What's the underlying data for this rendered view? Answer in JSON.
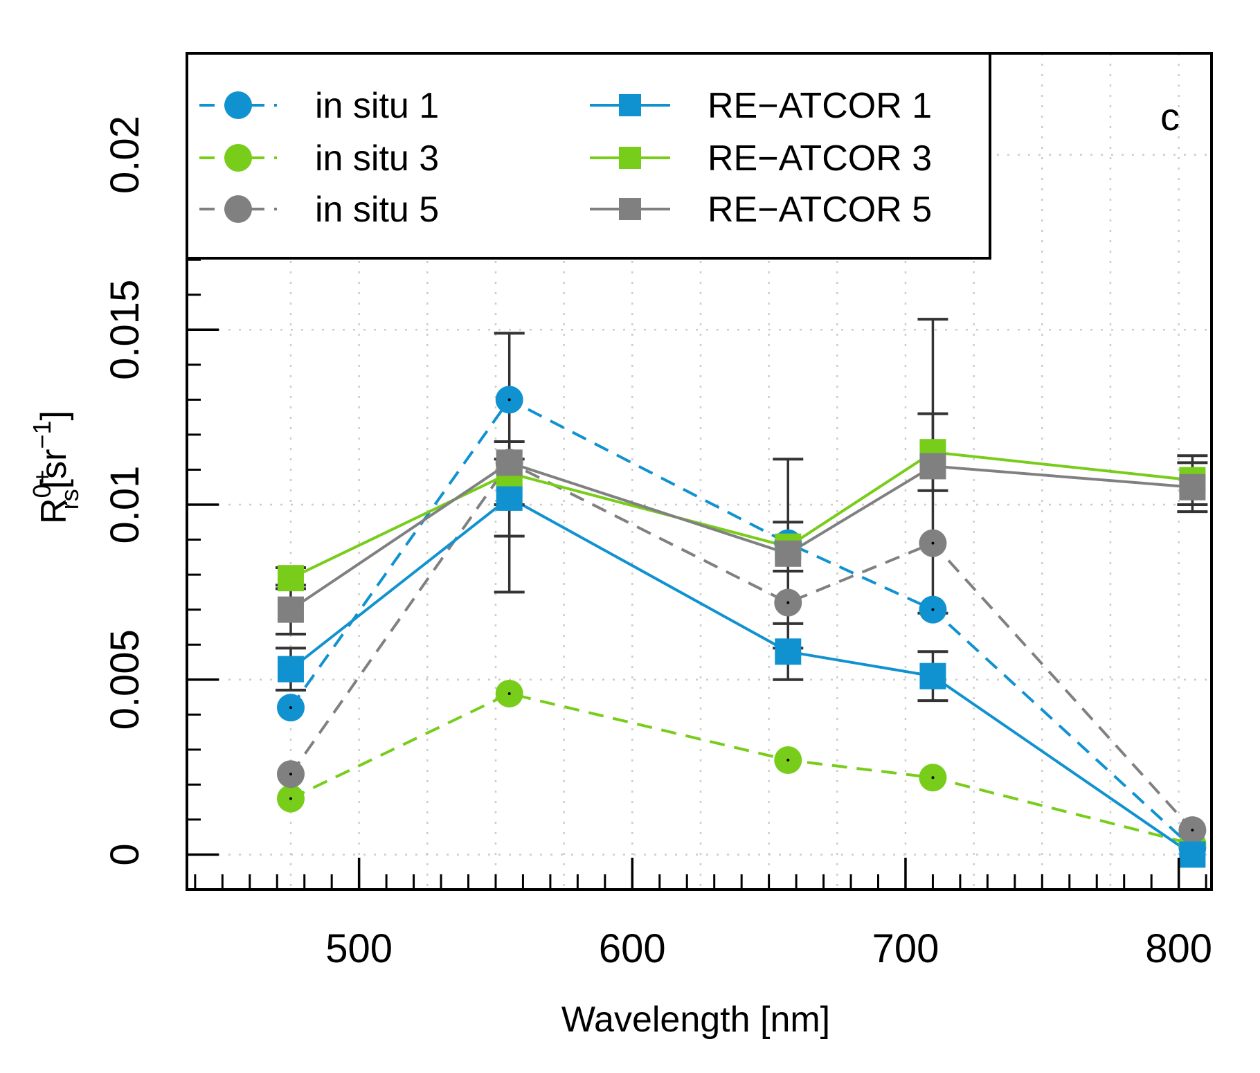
{
  "chart_data": {
    "type": "line",
    "panel_label": "c",
    "xlabel": "Wavelength [nm]",
    "ylabel": {
      "base": "R",
      "superscript": "0+",
      "subscript": "rs",
      "units_open": "[sr",
      "units_exp": "−1",
      "units_close": "]"
    },
    "xlim": [
      437,
      812
    ],
    "ylim": [
      -0.001,
      0.0229
    ],
    "x_ticks": [
      500,
      600,
      700,
      800
    ],
    "x_tick_labels": [
      "500",
      "600",
      "700",
      "800"
    ],
    "y_ticks": [
      0,
      0.005,
      0.01,
      0.015,
      0.02
    ],
    "y_tick_labels": [
      "0",
      "0.005",
      "0.01",
      "0.015",
      "0.02"
    ],
    "grid": true,
    "legend_position": "top-left",
    "x": [
      475,
      555,
      657,
      710,
      805
    ],
    "series": [
      {
        "name": "in situ 1",
        "kind": "in_situ",
        "color": "#1192d0",
        "values": [
          0.0042,
          0.013,
          0.0089,
          0.007,
          0.0002
        ]
      },
      {
        "name": "in situ 3",
        "kind": "in_situ",
        "color": "#78cc1a",
        "values": [
          0.0016,
          0.0046,
          0.0027,
          0.0022,
          0.0003
        ]
      },
      {
        "name": "in situ 5",
        "kind": "in_situ",
        "color": "#808080",
        "values": [
          0.0023,
          0.0112,
          0.0072,
          0.0089,
          0.0007
        ]
      },
      {
        "name": "RE−ATCOR 1",
        "kind": "re_atcor",
        "color": "#1192d0",
        "values": [
          0.0053,
          0.0102,
          0.0058,
          0.0051,
          0.0
        ],
        "err": [
          0.0006,
          0.0011,
          0.0008,
          0.0007,
          0.0
        ]
      },
      {
        "name": "RE−ATCOR 3",
        "kind": "re_atcor",
        "color": "#78cc1a",
        "values": [
          0.0079,
          0.0109,
          0.0088,
          0.0115,
          0.0107
        ],
        "err": [
          0.0003,
          0.0009,
          0.0007,
          0.0011,
          0.0007
        ]
      },
      {
        "name": "RE−ATCOR 5",
        "kind": "re_atcor",
        "color": "#808080",
        "values": [
          0.007,
          0.0112,
          0.0086,
          0.0111,
          0.0105
        ],
        "err": [
          0.0007,
          0.0037,
          0.0027,
          0.0042,
          0.0007
        ]
      }
    ]
  }
}
